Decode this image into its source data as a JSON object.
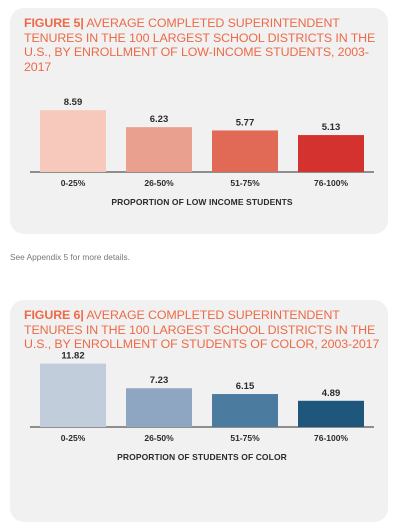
{
  "figures": [
    {
      "label": "FIGURE 5",
      "separator": "|",
      "title_text": "AVERAGE COMPLETED SUPERINTENDENT TENURES IN THE 100 LARGEST SCHOOL DISTRICTS IN THE U.S., BY ENROLLMENT OF LOW-INCOME STUDENTS, 2003-2017",
      "chart_data": {
        "type": "bar",
        "title": "FIGURE 5| AVERAGE COMPLETED SUPERINTENDENT TENURES IN THE 100 LARGEST SCHOOL DISTRICTS IN THE U.S., BY ENROLLMENT OF LOW-INCOME STUDENTS, 2003-2017",
        "categories": [
          "0-25%",
          "26-50%",
          "51-75%",
          "76-100%"
        ],
        "values": [
          8.59,
          6.23,
          5.77,
          5.13
        ],
        "data_labels": [
          "8.59",
          "6.23",
          "5.77",
          "5.13"
        ],
        "xlabel": "PROPORTION OF LOW INCOME STUDENTS",
        "ylabel": "",
        "ylim": [
          0,
          12.5
        ],
        "grid": false,
        "legend": "none",
        "colors": [
          "#f6c9bc",
          "#eaa08f",
          "#e16a56",
          "#d3322f"
        ]
      }
    },
    {
      "label": "FIGURE 6",
      "separator": "|",
      "title_text": "AVERAGE COMPLETED SUPERINTENDENT TENURES IN THE 100 LARGEST SCHOOL DISTRICTS IN THE U.S., BY ENROLLMENT OF STUDENTS OF COLOR, 2003-2017",
      "chart_data": {
        "type": "bar",
        "title": "FIGURE 6| AVERAGE COMPLETED SUPERINTENDENT TENURES IN THE 100 LARGEST SCHOOL DISTRICTS IN THE U.S., BY ENROLLMENT OF STUDENTS OF COLOR, 2003-2017",
        "categories": [
          "0-25%",
          "26-50%",
          "51-75%",
          "76-100%"
        ],
        "values": [
          11.82,
          7.23,
          6.15,
          4.89
        ],
        "data_labels": [
          "11.82",
          "7.23",
          "6.15",
          "4.89"
        ],
        "xlabel": "PROPORTION OF STUDENTS OF COLOR",
        "ylabel": "",
        "ylim": [
          0,
          12.5
        ],
        "grid": false,
        "legend": "none",
        "colors": [
          "#c2cddc",
          "#8fa6c2",
          "#4b7ca0",
          "#1f577c"
        ]
      }
    }
  ],
  "note": "See Appendix 5 for more details."
}
